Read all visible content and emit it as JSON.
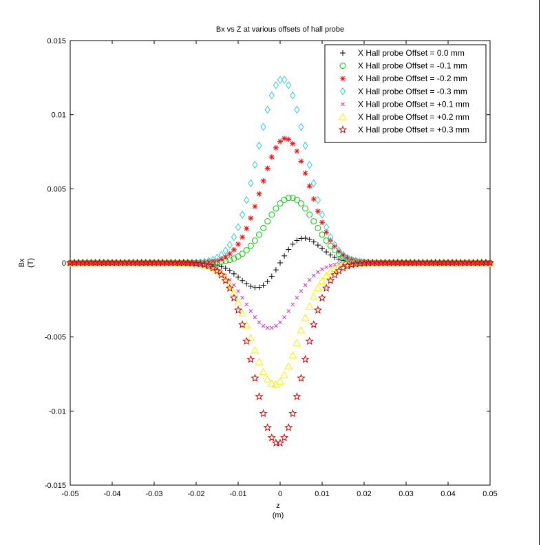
{
  "chart_data": {
    "type": "scatter",
    "title": "Bx vs Z at various offsets of hall probe",
    "xlabel": "z",
    "xunit": "(m)",
    "ylabel": "Bx",
    "yunit": "(T)",
    "xlim": [
      -0.05,
      0.05
    ],
    "ylim": [
      -0.015,
      0.015
    ],
    "xticks": [
      -0.05,
      -0.04,
      -0.03,
      -0.02,
      -0.01,
      0,
      0.01,
      0.02,
      0.03,
      0.04,
      0.05
    ],
    "xtick_labels": [
      "-0.05",
      "-0.04",
      "-0.03",
      "-0.02",
      "-0.01",
      "0",
      "0.01",
      "0.02",
      "0.03",
      "0.04",
      "0.05"
    ],
    "yticks": [
      -0.015,
      -0.01,
      -0.005,
      0,
      0.005,
      0.01,
      0.015
    ],
    "ytick_labels": [
      "-0.015",
      "-0.01",
      "-0.005",
      "0",
      "0.005",
      "0.01",
      "0.015"
    ],
    "grid": false,
    "legend_position": "top-right",
    "series": [
      {
        "name": "X Hall probe Offset = 0.0 mm",
        "marker": "plus",
        "color": "#000000",
        "profile": "dipole",
        "center": 0.0,
        "amplitude": 0.0018,
        "center_pos": 0.005,
        "center_neg": -0.005,
        "width": 0.0045
      },
      {
        "name": "X Hall probe Offset = -0.1 mm",
        "marker": "circle",
        "color": "#00cc00",
        "profile": "gaussian",
        "center": 0.0025,
        "amplitude": 0.0044,
        "width": 0.0058
      },
      {
        "name": "X Hall probe Offset = -0.2 mm",
        "marker": "asterisk",
        "color": "#ff0000",
        "profile": "gaussian",
        "center": 0.0013,
        "amplitude": 0.0084,
        "width": 0.0058
      },
      {
        "name": "X Hall probe Offset = -0.3 mm",
        "marker": "diamond",
        "color": "#33ccdd",
        "profile": "gaussian",
        "center": 0.0005,
        "amplitude": 0.0124,
        "width": 0.0058
      },
      {
        "name": "X Hall probe Offset = +0.1 mm",
        "marker": "x",
        "color": "#cc33cc",
        "profile": "gaussian",
        "center": -0.0025,
        "amplitude": -0.0044,
        "width": 0.0058
      },
      {
        "name": "X Hall probe Offset = +0.2 mm",
        "marker": "triangle",
        "color": "#ffee00",
        "profile": "gaussian",
        "center": -0.0013,
        "amplitude": -0.0082,
        "width": 0.0058
      },
      {
        "name": "X Hall probe Offset = +0.3 mm",
        "marker": "star",
        "color": "#cc0000",
        "profile": "gaussian",
        "center": -0.0005,
        "amplitude": -0.0122,
        "width": 0.0058
      }
    ],
    "sample_x_start": -0.05,
    "sample_x_end": 0.05,
    "sample_step": 0.001
  }
}
